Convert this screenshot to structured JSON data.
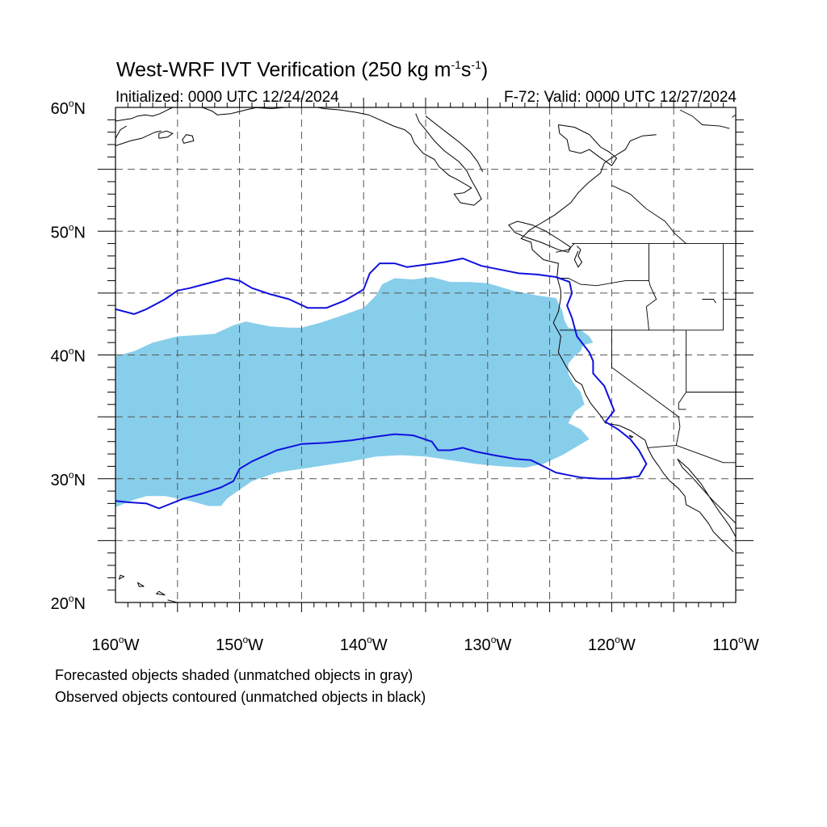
{
  "title": {
    "prefix": "West-WRF IVT Verification (250 kg m",
    "exp1": "-1",
    "middle": "s",
    "exp2": "-1",
    "suffix": ")"
  },
  "initialized": "Initialized: 0000 UTC 12/24/2024",
  "valid": "F-72: Valid: 0000 UTC 12/27/2024",
  "lat_labels": [
    {
      "lat": 60,
      "text": "60"
    },
    {
      "lat": 50,
      "text": "50"
    },
    {
      "lat": 40,
      "text": "40"
    },
    {
      "lat": 30,
      "text": "30"
    },
    {
      "lat": 20,
      "text": "20"
    }
  ],
  "lat_suffix": "N",
  "lon_labels": [
    {
      "lon": -160,
      "text": "160"
    },
    {
      "lon": -150,
      "text": "150"
    },
    {
      "lon": -140,
      "text": "140"
    },
    {
      "lon": -130,
      "text": "130"
    },
    {
      "lon": -120,
      "text": "120"
    },
    {
      "lon": -110,
      "text": "110"
    }
  ],
  "lon_suffix": "W",
  "map_extent": {
    "lon_min": -160,
    "lon_max": -110,
    "lat_min": 20,
    "lat_max": 60
  },
  "colors": {
    "forecast_fill": "#87ceeb",
    "observed_contour": "#1010dd",
    "coastline": "#000000",
    "grid": "#555555"
  },
  "forecast_object": [
    [
      -160,
      39.9
    ],
    [
      -158.5,
      40.3
    ],
    [
      -157,
      41
    ],
    [
      -155,
      41.5
    ],
    [
      -152,
      41.7
    ],
    [
      -150.5,
      42.4
    ],
    [
      -149.5,
      42.7
    ],
    [
      -148.5,
      42.5
    ],
    [
      -147.5,
      42.3
    ],
    [
      -146,
      42.2
    ],
    [
      -145,
      42.2
    ],
    [
      -143.5,
      42.6
    ],
    [
      -142,
      43.1
    ],
    [
      -140,
      43.8
    ],
    [
      -139,
      44.8
    ],
    [
      -138.5,
      45.7
    ],
    [
      -137.5,
      46.2
    ],
    [
      -136,
      46.1
    ],
    [
      -134.5,
      46.3
    ],
    [
      -133,
      45.9
    ],
    [
      -131.5,
      45.9
    ],
    [
      -130,
      45.8
    ],
    [
      -128,
      45.2
    ],
    [
      -126,
      44.8
    ],
    [
      -124.5,
      44.6
    ],
    [
      -124,
      43.6
    ],
    [
      -123.8,
      42.8
    ],
    [
      -123.5,
      42.2
    ],
    [
      -122.5,
      42
    ],
    [
      -121.8,
      41.5
    ],
    [
      -121.5,
      41
    ],
    [
      -122.3,
      40.8
    ],
    [
      -122.5,
      40.3
    ],
    [
      -123,
      39.9
    ],
    [
      -123.5,
      39.3
    ],
    [
      -123.5,
      38.5
    ],
    [
      -123,
      37.6
    ],
    [
      -122.5,
      37
    ],
    [
      -122.2,
      36
    ],
    [
      -123,
      35.4
    ],
    [
      -123.5,
      34.5
    ],
    [
      -122.5,
      34
    ],
    [
      -121.8,
      33.2
    ],
    [
      -122.8,
      32.6
    ],
    [
      -124,
      31.9
    ],
    [
      -125.5,
      31.2
    ],
    [
      -127,
      30.9
    ],
    [
      -129,
      31
    ],
    [
      -131,
      31.2
    ],
    [
      -133,
      31.5
    ],
    [
      -135,
      31.8
    ],
    [
      -137,
      31.9
    ],
    [
      -139,
      31.8
    ],
    [
      -141,
      31.4
    ],
    [
      -143,
      31.1
    ],
    [
      -145,
      30.8
    ],
    [
      -147,
      30.5
    ],
    [
      -149,
      29.8
    ],
    [
      -150,
      29.1
    ],
    [
      -151,
      28.4
    ],
    [
      -151.5,
      27.8
    ],
    [
      -152.5,
      27.8
    ],
    [
      -154,
      28.2
    ],
    [
      -156,
      28.6
    ],
    [
      -157.5,
      28.6
    ],
    [
      -158.5,
      28.3
    ],
    [
      -160,
      27.7
    ]
  ],
  "observed_object": [
    [
      -160,
      43.7
    ],
    [
      -158.5,
      43.3
    ],
    [
      -157.5,
      43.7
    ],
    [
      -156,
      44.5
    ],
    [
      -155,
      45.2
    ],
    [
      -154,
      45.4
    ],
    [
      -152.5,
      45.8
    ],
    [
      -151,
      46.2
    ],
    [
      -150,
      46.0
    ],
    [
      -149,
      45.4
    ],
    [
      -147.5,
      44.9
    ],
    [
      -146,
      44.5
    ],
    [
      -144.5,
      43.8
    ],
    [
      -143,
      43.8
    ],
    [
      -141.5,
      44.4
    ],
    [
      -140,
      45.3
    ],
    [
      -139.5,
      46.6
    ],
    [
      -138.7,
      47.4
    ],
    [
      -137.5,
      47.4
    ],
    [
      -136.5,
      47.1
    ],
    [
      -135,
      47.3
    ],
    [
      -133.5,
      47.5
    ],
    [
      -132,
      47.8
    ],
    [
      -130.5,
      47.2
    ],
    [
      -129,
      46.9
    ],
    [
      -127.5,
      46.6
    ],
    [
      -126,
      46.5
    ],
    [
      -124.5,
      46.3
    ],
    [
      -123.4,
      45.9
    ],
    [
      -123.2,
      45
    ],
    [
      -123.6,
      44
    ],
    [
      -123.2,
      43
    ],
    [
      -122.8,
      41.5
    ],
    [
      -121.8,
      40.2
    ],
    [
      -121.5,
      39.5
    ],
    [
      -121.5,
      38.5
    ],
    [
      -120.6,
      37.5
    ],
    [
      -120.2,
      36.5
    ],
    [
      -119.8,
      35.5
    ],
    [
      -120.5,
      34.6
    ],
    [
      -119.5,
      34
    ],
    [
      -118.5,
      33.2
    ],
    [
      -117.8,
      32.3
    ],
    [
      -117.2,
      31.2
    ],
    [
      -117.8,
      30.2
    ],
    [
      -119.5,
      30
    ],
    [
      -121,
      30
    ],
    [
      -122.5,
      30.1
    ],
    [
      -123.5,
      30.3
    ],
    [
      -124.5,
      30.5
    ],
    [
      -125.5,
      31
    ],
    [
      -126.5,
      31.5
    ],
    [
      -127.8,
      31.6
    ],
    [
      -129.5,
      31.9
    ],
    [
      -131,
      32.2
    ],
    [
      -132,
      32.5
    ],
    [
      -133,
      32.3
    ],
    [
      -134,
      32.3
    ],
    [
      -134.5,
      33
    ],
    [
      -136,
      33.5
    ],
    [
      -137.5,
      33.6
    ],
    [
      -139,
      33.4
    ],
    [
      -141,
      33.1
    ],
    [
      -143,
      32.9
    ],
    [
      -145,
      32.8
    ],
    [
      -147,
      32.3
    ],
    [
      -149,
      31.4
    ],
    [
      -150,
      30.8
    ],
    [
      -150.5,
      29.8
    ],
    [
      -151.5,
      29.3
    ],
    [
      -153,
      28.8
    ],
    [
      -154.5,
      28.4
    ],
    [
      -156.5,
      27.6
    ],
    [
      -157.5,
      28
    ],
    [
      -159,
      28.1
    ],
    [
      -160,
      28.2
    ]
  ],
  "coastlines": [
    [
      [
        -124.3,
        58.6
      ],
      [
        -124.2,
        57.9
      ],
      [
        -123.6,
        57.4
      ],
      [
        -123.4,
        56.5
      ],
      [
        -122.5,
        56.3
      ],
      [
        -121.8,
        56.6
      ],
      [
        -121,
        56
      ],
      [
        -120,
        55.3
      ],
      [
        -119.6,
        55.9
      ],
      [
        -120.2,
        56.4
      ],
      [
        -120.9,
        56.8
      ],
      [
        -121.8,
        57.8
      ],
      [
        -123,
        58.4
      ],
      [
        -124.3,
        58.6
      ]
    ],
    [
      [
        -116.4,
        57.8
      ],
      [
        -117.5,
        57.7
      ],
      [
        -118.5,
        57.3
      ],
      [
        -118.9,
        56.6
      ],
      [
        -120.2,
        55.8
      ],
      [
        -120.6,
        55.5
      ],
      [
        -120.9,
        54.7
      ],
      [
        -121.9,
        53.9
      ],
      [
        -122.7,
        53.1
      ],
      [
        -123.3,
        52.3
      ],
      [
        -124.6,
        51.3
      ],
      [
        -125.6,
        50.7
      ],
      [
        -126.6,
        50.1
      ],
      [
        -127.3,
        49.4
      ],
      [
        -126.5,
        49.1
      ],
      [
        -126.4,
        48.5
      ],
      [
        -125.5,
        47.7
      ],
      [
        -124.3,
        47.4
      ],
      [
        -124.4,
        46.3
      ],
      [
        -124.1,
        45.2
      ],
      [
        -124.1,
        44.6
      ],
      [
        -124.3,
        43.5
      ],
      [
        -124.7,
        42.6
      ],
      [
        -124.1,
        41.5
      ],
      [
        -124.3,
        40.2
      ],
      [
        -123.7,
        39.1
      ],
      [
        -122.9,
        37.9
      ],
      [
        -122.4,
        37.6
      ],
      [
        -122.1,
        36.8
      ],
      [
        -121.7,
        36.1
      ],
      [
        -120.9,
        35.1
      ],
      [
        -120.5,
        34.5
      ],
      [
        -119.4,
        34.3
      ],
      [
        -118.5,
        33.9
      ],
      [
        -117.3,
        33.1
      ],
      [
        -117.1,
        32.5
      ],
      [
        -116.7,
        31.7
      ],
      [
        -116.2,
        31
      ],
      [
        -115.8,
        30.4
      ],
      [
        -115.3,
        29.8
      ],
      [
        -114.6,
        29.2
      ],
      [
        -114.1,
        28.6
      ],
      [
        -114,
        27.9
      ],
      [
        -112.9,
        27.3
      ],
      [
        -112.2,
        26.4
      ],
      [
        -111.8,
        25.7
      ],
      [
        -110.8,
        24.7
      ],
      [
        -110.2,
        24.1
      ]
    ],
    [
      [
        -110,
        25.3
      ],
      [
        -110.5,
        26.2
      ],
      [
        -111.3,
        27.3
      ],
      [
        -112.1,
        28.5
      ],
      [
        -112.8,
        29.6
      ],
      [
        -113.8,
        30.8
      ],
      [
        -114.7,
        31.6
      ],
      [
        -114.3,
        30.9
      ],
      [
        -113.5,
        30.1
      ],
      [
        -112.7,
        29.2
      ],
      [
        -111.9,
        28.3
      ],
      [
        -111.2,
        27.6
      ],
      [
        -110.6,
        27
      ],
      [
        -110,
        26.4
      ]
    ],
    [
      [
        -160,
        56.9
      ],
      [
        -158.8,
        57.3
      ],
      [
        -157.9,
        57.5
      ],
      [
        -156.8,
        58
      ],
      [
        -156.3,
        58.1
      ]
    ],
    [
      [
        -160,
        58.9
      ],
      [
        -158.7,
        59.1
      ],
      [
        -158.2,
        59.3
      ],
      [
        -157.6,
        59.4
      ],
      [
        -157,
        59.3
      ],
      [
        -156.4,
        59.5
      ],
      [
        -155.8,
        59.8
      ],
      [
        -155.4,
        60
      ]
    ],
    [
      [
        -156.5,
        57.5
      ],
      [
        -155.8,
        57.6
      ],
      [
        -155.4,
        57.9
      ],
      [
        -155.9,
        58.1
      ],
      [
        -156.5,
        57.9
      ],
      [
        -156.5,
        57.5
      ]
    ],
    [
      [
        -154.5,
        57.1
      ],
      [
        -153.7,
        57.3
      ],
      [
        -153.8,
        57.7
      ],
      [
        -154.3,
        57.8
      ],
      [
        -154.6,
        57.4
      ],
      [
        -154.5,
        57.1
      ]
    ],
    [
      [
        -160,
        57.5
      ],
      [
        -159.6,
        58.2
      ],
      [
        -159.1,
        58.5
      ]
    ],
    [
      [
        -153,
        60
      ],
      [
        -152.2,
        59.7
      ],
      [
        -151.8,
        59.4
      ],
      [
        -150.7,
        59.5
      ],
      [
        -149.5,
        59.8
      ],
      [
        -148.6,
        60
      ],
      [
        -147.2,
        60.3
      ]
    ],
    [
      [
        -149,
        60
      ],
      [
        -147.4,
        59.9
      ],
      [
        -146.3,
        60
      ],
      [
        -145.3,
        60
      ],
      [
        -144.2,
        60.1
      ],
      [
        -143.2,
        59.9
      ],
      [
        -141.9,
        59.8
      ],
      [
        -140.6,
        59.6
      ],
      [
        -139.6,
        59.4
      ],
      [
        -138.7,
        59
      ],
      [
        -137.6,
        58.5
      ],
      [
        -136.7,
        58.2
      ],
      [
        -136.2,
        57.8
      ],
      [
        -135.9,
        57.1
      ],
      [
        -135.2,
        56.3
      ],
      [
        -134.3,
        55.8
      ],
      [
        -133.9,
        55.2
      ],
      [
        -133.1,
        54.5
      ],
      [
        -132.5,
        54.2
      ],
      [
        -131.3,
        53.5
      ],
      [
        -131.9,
        53.1
      ],
      [
        -132.7,
        53
      ],
      [
        -132.2,
        52.3
      ],
      [
        -131.1,
        52.1
      ],
      [
        -130.5,
        52.6
      ],
      [
        -130.9,
        53.4
      ],
      [
        -131.3,
        54.1
      ],
      [
        -131.7,
        54.9
      ],
      [
        -132.3,
        55.6
      ],
      [
        -133.5,
        56.5
      ],
      [
        -134.3,
        57.3
      ],
      [
        -135,
        58.2
      ],
      [
        -135.5,
        58.8
      ],
      [
        -135.8,
        59.5
      ]
    ],
    [
      [
        -130.4,
        54.8
      ],
      [
        -130.8,
        55.6
      ],
      [
        -131.4,
        56.4
      ],
      [
        -132.3,
        57.2
      ],
      [
        -133.2,
        57.9
      ],
      [
        -134.1,
        58.6
      ],
      [
        -135,
        59.3
      ]
    ],
    [
      [
        -125.7,
        49.1
      ],
      [
        -124.3,
        48.5
      ],
      [
        -123.5,
        48.3
      ],
      [
        -123.3,
        48.7
      ],
      [
        -124.2,
        49.3
      ],
      [
        -125.3,
        50
      ],
      [
        -126.4,
        50.5
      ],
      [
        -127.6,
        50.8
      ],
      [
        -128.3,
        50.5
      ],
      [
        -127.8,
        49.9
      ],
      [
        -126.9,
        49.5
      ],
      [
        -125.7,
        49.1
      ]
    ],
    [
      [
        -122.8,
        48.8
      ],
      [
        -122.5,
        48.5
      ],
      [
        -122.7,
        48
      ],
      [
        -122.4,
        47.5
      ],
      [
        -122.7,
        47.1
      ],
      [
        -123,
        47.7
      ],
      [
        -122.7,
        48.4
      ]
    ],
    [
      [
        -156,
        20.6
      ],
      [
        -156.5,
        20.9
      ],
      [
        -156.7,
        20.7
      ],
      [
        -156,
        20.6
      ]
    ],
    [
      [
        -157.7,
        21.3
      ],
      [
        -158.2,
        21.6
      ],
      [
        -158.1,
        21.3
      ],
      [
        -157.7,
        21.3
      ]
    ],
    [
      [
        -159.3,
        22.1
      ],
      [
        -159.6,
        22.2
      ],
      [
        -159.7,
        21.9
      ],
      [
        -159.3,
        22.1
      ]
    ],
    [
      [
        -155.8,
        20.2
      ],
      [
        -155,
        20
      ],
      [
        -154.8,
        19.6
      ]
    ],
    [
      [
        -118.4,
        33.3
      ],
      [
        -118.6,
        33.5
      ],
      [
        -118.3,
        33.4
      ],
      [
        -118.4,
        33.3
      ]
    ]
  ],
  "borders": [
    [
      [
        -110,
        49
      ],
      [
        -123.2,
        49
      ]
    ],
    [
      [
        -123,
        49
      ],
      [
        -123.5,
        48.5
      ],
      [
        -124.5,
        48.3
      ]
    ],
    [
      [
        -117,
        49
      ],
      [
        -117,
        46
      ],
      [
        -116.9,
        45.6
      ],
      [
        -116.4,
        44.5
      ],
      [
        -117.2,
        43.9
      ],
      [
        -117,
        42
      ]
    ],
    [
      [
        -111,
        49
      ],
      [
        -111,
        45
      ],
      [
        -111,
        44.5
      ]
    ],
    [
      [
        -124.2,
        46.2
      ],
      [
        -123.5,
        46.2
      ],
      [
        -122.5,
        45.7
      ],
      [
        -121.2,
        45.6
      ],
      [
        -119.5,
        45.9
      ],
      [
        -118.9,
        46
      ],
      [
        -117,
        46
      ]
    ],
    [
      [
        -124.2,
        42
      ],
      [
        -117,
        42
      ],
      [
        -111,
        42
      ]
    ],
    [
      [
        -111,
        45
      ],
      [
        -111,
        42
      ]
    ],
    [
      [
        -110,
        44.5
      ],
      [
        -111,
        44.5
      ]
    ],
    [
      [
        -120,
        42
      ],
      [
        -120,
        39
      ],
      [
        -114.6,
        35
      ],
      [
        -114.5,
        34.2
      ],
      [
        -114.8,
        32.7
      ]
    ],
    [
      [
        -117.1,
        32.5
      ],
      [
        -114.8,
        32.7
      ],
      [
        -111,
        31.3
      ],
      [
        -110,
        31.3
      ]
    ],
    [
      [
        -114,
        42
      ],
      [
        -114,
        37
      ],
      [
        -114.6,
        36.1
      ],
      [
        -114.6,
        35.6
      ]
    ],
    [
      [
        -110,
        37
      ],
      [
        -114,
        37
      ]
    ],
    [
      [
        -114,
        35.6
      ],
      [
        -114.6,
        35.6
      ]
    ],
    [
      [
        -110.5,
        58.3
      ],
      [
        -111.3,
        58.5
      ],
      [
        -112.7,
        58.6
      ],
      [
        -113.5,
        59.3
      ],
      [
        -114.5,
        59.8
      ]
    ],
    [
      [
        -120,
        53.7
      ],
      [
        -118.5,
        53
      ],
      [
        -117.2,
        51.8
      ],
      [
        -115.7,
        50.8
      ],
      [
        -114.9,
        49.8
      ],
      [
        -114,
        49
      ]
    ],
    [
      [
        -112.7,
        44.5
      ],
      [
        -111.8,
        44.5
      ],
      [
        -111.6,
        44.2
      ]
    ],
    [
      [
        -110.3,
        59.2
      ],
      [
        -110,
        59.4
      ]
    ]
  ]
}
